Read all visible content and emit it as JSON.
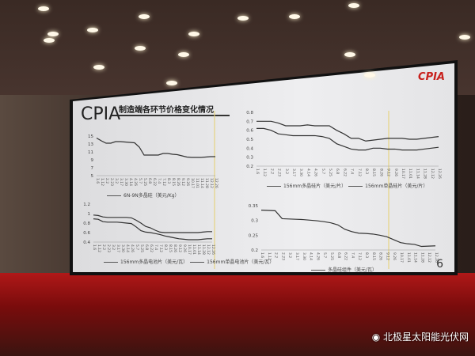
{
  "slide": {
    "logo": "CPIA",
    "brand": "CPIA",
    "title": "制造端各环节价格变化情况",
    "page_number": "6"
  },
  "watermark": "北极星太阳能光伏网",
  "chart_data": [
    {
      "type": "line",
      "x": [
        "1.6",
        "1.12",
        "2.2",
        "2.23",
        "3.2",
        "3.17",
        "3.30",
        "4.14",
        "4.26",
        "5.7",
        "5.25",
        "6.8",
        "6.22",
        "7.4",
        "7.12",
        "8.3",
        "8.15",
        "8.26",
        "9.12",
        "9.26",
        "10.17",
        "11.01",
        "11.14",
        "11.28",
        "12.12",
        "12.26"
      ],
      "yticks": [
        "15",
        "13",
        "11",
        "9",
        "7",
        "5"
      ],
      "ylim": [
        5,
        15
      ],
      "series": [
        {
          "name": "6N-9N多晶硅（美元/Kg）",
          "values": [
            14.5,
            13.8,
            13.2,
            13.2,
            13.6,
            13.6,
            13.5,
            13.4,
            13.3,
            12.2,
            10.2,
            10.2,
            10.2,
            10.2,
            10.6,
            10.6,
            10.4,
            10.3,
            10.0,
            9.7,
            9.6,
            9.6,
            9.6,
            9.7,
            9.8,
            9.8
          ]
        }
      ]
    },
    {
      "type": "line",
      "x": [
        "1.6",
        "1.12",
        "2.2",
        "2.23",
        "3.2",
        "3.17",
        "3.30",
        "4.14",
        "4.26",
        "5.7",
        "5.25",
        "6.8",
        "6.22",
        "7.4",
        "7.12",
        "8.3",
        "8.15",
        "8.26",
        "9.12",
        "9.26",
        "10.17",
        "11.01",
        "11.14",
        "11.28",
        "12.12",
        "12.26"
      ],
      "yticks": [
        "0.8",
        "0.7",
        "0.6",
        "0.5",
        "0.4",
        "0.3",
        "0.2"
      ],
      "ylim": [
        0.2,
        0.8
      ],
      "series": [
        {
          "name": "156mm多晶硅片（美元/片）",
          "values": [
            0.7,
            0.7,
            0.7,
            0.68,
            0.65,
            0.65,
            0.65,
            0.66,
            0.65,
            0.65,
            0.65,
            0.6,
            0.56,
            0.51,
            0.51,
            0.48,
            0.49,
            0.5,
            0.51,
            0.51,
            0.51,
            0.5,
            0.5,
            0.51,
            0.52,
            0.53
          ]
        },
        {
          "name": "156mm单晶硅片（美元/片）",
          "values": [
            0.62,
            0.62,
            0.6,
            0.56,
            0.55,
            0.54,
            0.54,
            0.54,
            0.54,
            0.53,
            0.51,
            0.45,
            0.42,
            0.39,
            0.38,
            0.38,
            0.4,
            0.4,
            0.39,
            0.39,
            0.38,
            0.38,
            0.38,
            0.39,
            0.4,
            0.41
          ]
        }
      ]
    },
    {
      "type": "line",
      "x": [
        "1.6",
        "1.12",
        "2.2",
        "2.23",
        "3.2",
        "3.17",
        "3.30",
        "4.14",
        "4.26",
        "5.7",
        "5.25",
        "6.8",
        "6.22",
        "7.4",
        "7.12",
        "8.3",
        "8.15",
        "8.26",
        "9.12",
        "9.26",
        "10.17",
        "11.01",
        "11.14",
        "11.28",
        "12.12",
        "12.26"
      ],
      "yticks": [
        "1.2",
        "1",
        "0.8",
        "0.6",
        "0.4"
      ],
      "ylim": [
        0.4,
        1.2
      ],
      "series": [
        {
          "name": "156mm多晶电池片（美元/瓦）",
          "values": [
            0.97,
            0.96,
            0.93,
            0.92,
            0.92,
            0.92,
            0.92,
            0.92,
            0.91,
            0.86,
            0.8,
            0.73,
            0.7,
            0.65,
            0.61,
            0.6,
            0.6,
            0.6,
            0.6,
            0.6,
            0.6,
            0.6,
            0.6,
            0.61,
            0.62,
            0.62
          ]
        },
        {
          "name": "156mm单晶电池片（美元/瓦）",
          "values": [
            0.89,
            0.88,
            0.83,
            0.82,
            0.82,
            0.82,
            0.81,
            0.8,
            0.79,
            0.72,
            0.64,
            0.61,
            0.6,
            0.58,
            0.56,
            0.53,
            0.51,
            0.49,
            0.47,
            0.46,
            0.45,
            0.45,
            0.45,
            0.46,
            0.47,
            0.47
          ]
        }
      ]
    },
    {
      "type": "line",
      "x": [
        "1.6",
        "1.12",
        "2.2",
        "2.23",
        "3.2",
        "3.17",
        "3.30",
        "4.14",
        "4.26",
        "5.7",
        "5.25",
        "6.8",
        "6.22",
        "7.4",
        "7.12",
        "8.3",
        "8.15",
        "8.26",
        "9.12",
        "9.26",
        "10.17",
        "11.01",
        "11.14",
        "11.28",
        "12.12",
        "12.26"
      ],
      "yticks": [
        "0.35",
        "0.3",
        "0.25",
        "0.2"
      ],
      "ylim": [
        0.2,
        0.35
      ],
      "series": [
        {
          "name": "多晶硅组件（美元/瓦）",
          "values": [
            0.335,
            0.334,
            0.333,
            0.306,
            0.305,
            0.304,
            0.303,
            0.301,
            0.299,
            0.296,
            0.292,
            0.285,
            0.27,
            0.262,
            0.257,
            0.256,
            0.254,
            0.25,
            0.245,
            0.235,
            0.225,
            0.221,
            0.219,
            0.212,
            0.213,
            0.214
          ]
        }
      ]
    }
  ]
}
